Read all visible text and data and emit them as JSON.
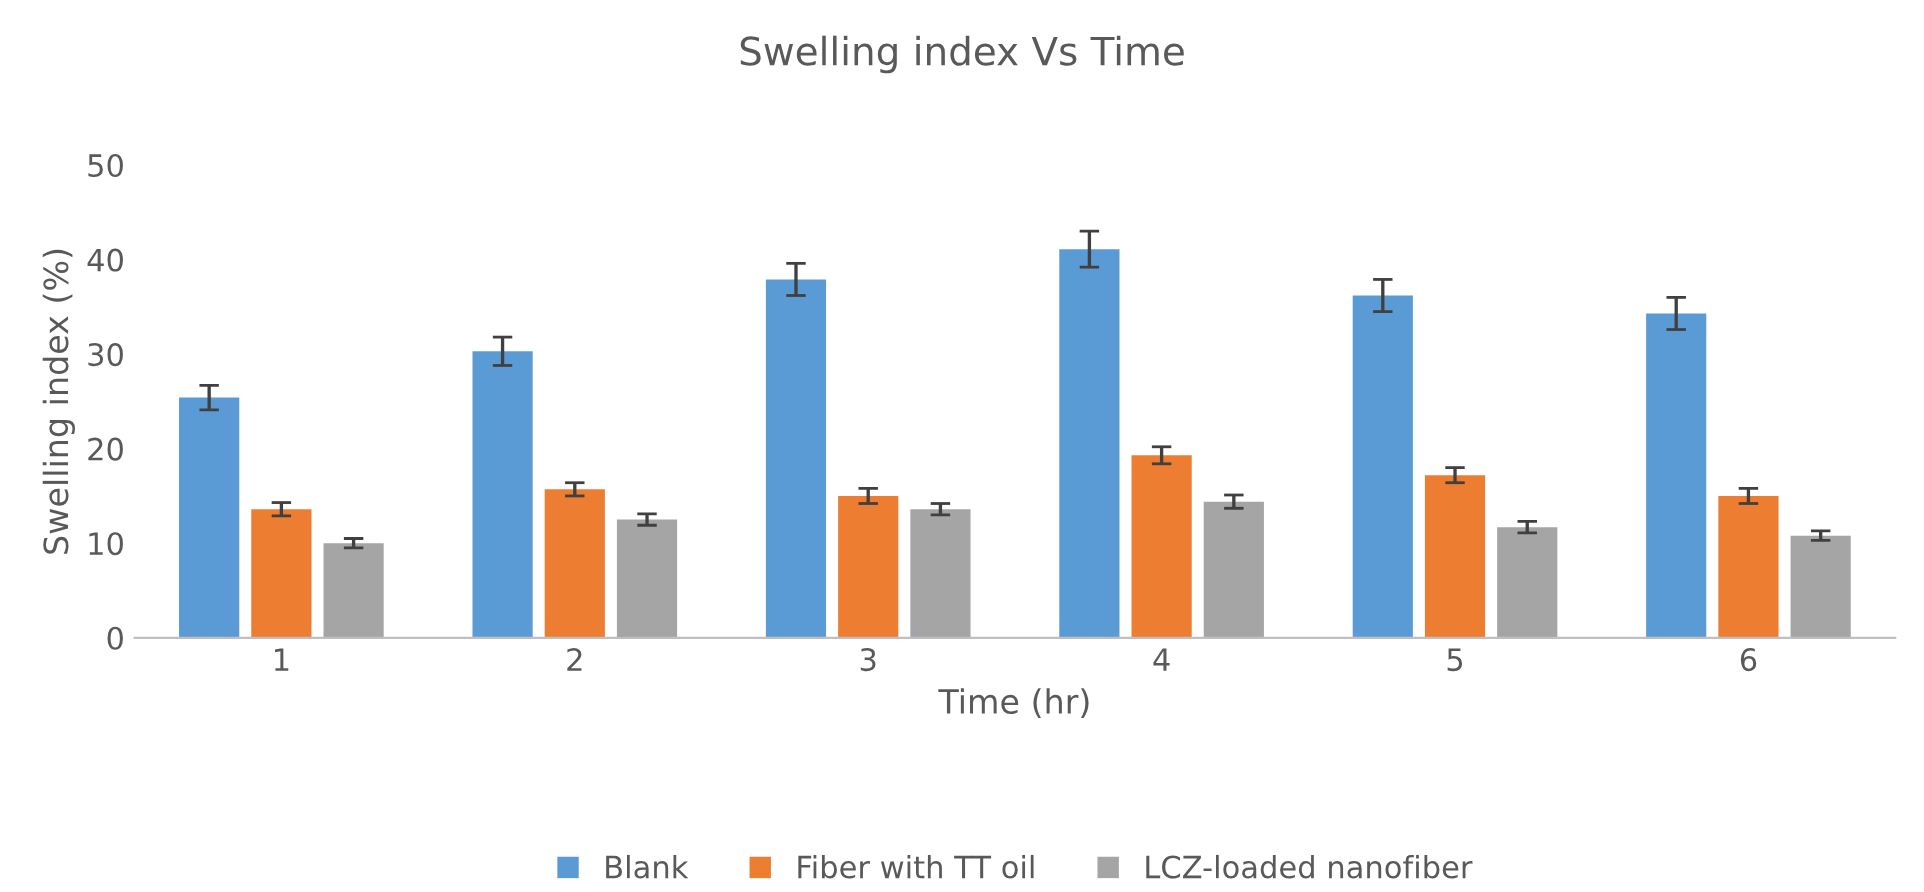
{
  "chart_data": {
    "type": "bar",
    "title": "Swelling index Vs Time",
    "xlabel": "Time (hr)",
    "ylabel": "Swelling index (%)",
    "categories": [
      "1",
      "2",
      "3",
      "4",
      "5",
      "6"
    ],
    "series": [
      {
        "name": "Blank",
        "color": "#5b9bd5",
        "values": [
          25.4,
          30.3,
          37.9,
          41.1,
          36.2,
          34.3
        ],
        "errors": [
          1.3,
          1.5,
          1.7,
          1.9,
          1.7,
          1.7
        ]
      },
      {
        "name": "Fiber with TT oil",
        "color": "#ed7d31",
        "values": [
          13.6,
          15.7,
          15.0,
          19.3,
          17.2,
          15.0
        ],
        "errors": [
          0.7,
          0.7,
          0.8,
          0.9,
          0.8,
          0.8
        ]
      },
      {
        "name": "LCZ-loaded nanofiber",
        "color": "#a5a5a5",
        "values": [
          10.0,
          12.5,
          13.6,
          14.4,
          11.7,
          10.8
        ],
        "errors": [
          0.5,
          0.6,
          0.6,
          0.7,
          0.6,
          0.5
        ]
      }
    ],
    "ylim": [
      0,
      50
    ],
    "yticks": [
      0,
      10,
      20,
      30,
      40,
      50
    ],
    "grid": false,
    "legend": "bottom"
  }
}
